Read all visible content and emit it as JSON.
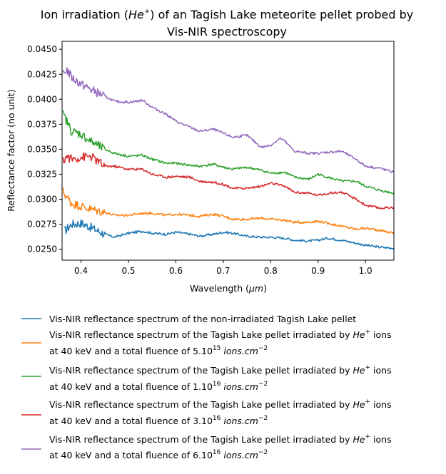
{
  "chart_data": {
    "type": "line",
    "title_line1_pre": "Ion irradiation (",
    "title_line1_ion": "He",
    "title_line1_ion_sup": "+",
    "title_line1_post": ") of an Tagish Lake meteorite pellet probed by",
    "title_line2": "Vis-NIR spectroscopy",
    "xlabel_pre": "Wavelength (",
    "xlabel_unit": "μm",
    "xlabel_post": ")",
    "ylabel": "Reflectance factor (no unit)",
    "xlim": [
      0.36,
      1.06
    ],
    "ylim": [
      0.0239,
      0.0458
    ],
    "xticks": [
      "0.4",
      "0.5",
      "0.6",
      "0.7",
      "0.8",
      "0.9",
      "1.0"
    ],
    "xtick_values": [
      0.4,
      0.5,
      0.6,
      0.7,
      0.8,
      0.9,
      1.0
    ],
    "yticks": [
      "0.0250",
      "0.0275",
      "0.0300",
      "0.0325",
      "0.0350",
      "0.0375",
      "0.0400",
      "0.0425",
      "0.0450"
    ],
    "ytick_values": [
      0.025,
      0.0275,
      0.03,
      0.0325,
      0.035,
      0.0375,
      0.04,
      0.0425,
      0.045
    ],
    "grid": false,
    "legend_position": "below plot",
    "series": [
      {
        "color": "#1f77b4",
        "legend": {
          "line1": "Vis-NIR reflectance spectrum of the non-irradiated Tagish Lake pellet",
          "line2": ""
        },
        "x": [
          0.365,
          0.38,
          0.4,
          0.42,
          0.45,
          0.47,
          0.5,
          0.53,
          0.55,
          0.58,
          0.6,
          0.63,
          0.65,
          0.68,
          0.7,
          0.72,
          0.75,
          0.78,
          0.8,
          0.83,
          0.85,
          0.88,
          0.9,
          0.92,
          0.95,
          0.98,
          1.0,
          1.03,
          1.06
        ],
        "y": [
          0.0268,
          0.0275,
          0.0276,
          0.0272,
          0.0265,
          0.0262,
          0.0266,
          0.0268,
          0.0266,
          0.0265,
          0.0267,
          0.0265,
          0.0263,
          0.0265,
          0.0267,
          0.0266,
          0.0263,
          0.0262,
          0.0262,
          0.0261,
          0.0259,
          0.0258,
          0.0259,
          0.0261,
          0.0259,
          0.0256,
          0.0254,
          0.0252,
          0.0251
        ]
      },
      {
        "color": "#ff7f0e",
        "legend": {
          "line1_pre": "Vis-NIR reflectance spectrum of the Tagish Lake pellet irradiated by ",
          "line1_ion": "He",
          "line1_ion_sup": "+",
          "line1_post": " ions",
          "line2_pre": "at 40 keV and a total fluence of 5.10",
          "line2_exp": "15",
          "line2_unit": "ions.cm",
          "line2_unit_exp": "−2"
        },
        "x": [
          0.362,
          0.37,
          0.38,
          0.4,
          0.42,
          0.45,
          0.47,
          0.5,
          0.53,
          0.55,
          0.58,
          0.6,
          0.63,
          0.65,
          0.68,
          0.7,
          0.72,
          0.75,
          0.78,
          0.8,
          0.83,
          0.85,
          0.88,
          0.9,
          0.92,
          0.95,
          0.98,
          1.0,
          1.03,
          1.06
        ],
        "y": [
          0.0308,
          0.0302,
          0.0296,
          0.0293,
          0.029,
          0.0287,
          0.0284,
          0.0284,
          0.0286,
          0.0286,
          0.0284,
          0.0285,
          0.0284,
          0.0283,
          0.0285,
          0.0283,
          0.028,
          0.028,
          0.0281,
          0.028,
          0.0279,
          0.0277,
          0.0277,
          0.0278,
          0.0276,
          0.0273,
          0.027,
          0.0271,
          0.0269,
          0.0266
        ]
      },
      {
        "color": "#2ca02c",
        "legend": {
          "line1_pre": "Vis-NIR reflectance spectrum of the Tagish Lake pellet irradiated by ",
          "line1_ion": "He",
          "line1_ion_sup": "+",
          "line1_post": " ions",
          "line2_pre": "at 40 keV and a total fluence of 1.10",
          "line2_exp": "16",
          "line2_unit": "ions.cm",
          "line2_unit_exp": "−2"
        },
        "x": [
          0.362,
          0.37,
          0.38,
          0.4,
          0.42,
          0.45,
          0.47,
          0.5,
          0.53,
          0.55,
          0.58,
          0.6,
          0.63,
          0.65,
          0.68,
          0.7,
          0.72,
          0.75,
          0.78,
          0.8,
          0.83,
          0.85,
          0.88,
          0.9,
          0.92,
          0.95,
          0.98,
          1.0,
          1.03,
          1.06
        ],
        "y": [
          0.0385,
          0.0378,
          0.0368,
          0.0365,
          0.0358,
          0.035,
          0.0346,
          0.0343,
          0.0344,
          0.034,
          0.0336,
          0.0336,
          0.0334,
          0.0333,
          0.0335,
          0.0332,
          0.033,
          0.0332,
          0.0329,
          0.0326,
          0.0327,
          0.0322,
          0.032,
          0.0325,
          0.0322,
          0.0318,
          0.0318,
          0.0313,
          0.0309,
          0.0306
        ]
      },
      {
        "color": "#d62728",
        "legend": {
          "line1_pre": "Vis-NIR reflectance spectrum of the Tagish Lake pellet irradiated by ",
          "line1_ion": "He",
          "line1_ion_sup": "+",
          "line1_post": " ions",
          "line2_pre": "at 40 keV and a total fluence of 3.10",
          "line2_exp": "16",
          "line2_unit": "ions.cm",
          "line2_unit_exp": "−2"
        },
        "x": [
          0.362,
          0.37,
          0.38,
          0.4,
          0.42,
          0.45,
          0.47,
          0.5,
          0.53,
          0.55,
          0.58,
          0.6,
          0.63,
          0.65,
          0.68,
          0.7,
          0.72,
          0.75,
          0.78,
          0.8,
          0.83,
          0.85,
          0.88,
          0.9,
          0.92,
          0.95,
          0.98,
          1.0,
          1.03,
          1.06
        ],
        "y": [
          0.0338,
          0.0343,
          0.034,
          0.0342,
          0.0343,
          0.0333,
          0.0333,
          0.033,
          0.033,
          0.0325,
          0.0322,
          0.0323,
          0.0322,
          0.0318,
          0.0317,
          0.0315,
          0.0311,
          0.0311,
          0.0313,
          0.0316,
          0.0313,
          0.0307,
          0.0306,
          0.0304,
          0.0306,
          0.0307,
          0.03,
          0.0294,
          0.0291,
          0.0292
        ]
      },
      {
        "color": "#9467bd",
        "legend": {
          "line1_pre": "Vis-NIR reflectance spectrum of the Tagish Lake pellet irradiated by ",
          "line1_ion": "He",
          "line1_ion_sup": "+",
          "line1_post": " ions",
          "line2_pre": "at 40 keV and a total fluence of 6.10",
          "line2_exp": "16",
          "line2_unit": "ions.cm",
          "line2_unit_exp": "−2"
        },
        "x": [
          0.362,
          0.37,
          0.38,
          0.4,
          0.42,
          0.45,
          0.47,
          0.5,
          0.53,
          0.55,
          0.58,
          0.6,
          0.63,
          0.65,
          0.68,
          0.7,
          0.72,
          0.75,
          0.78,
          0.8,
          0.82,
          0.83,
          0.85,
          0.88,
          0.9,
          0.92,
          0.95,
          0.98,
          1.0,
          1.03,
          1.06
        ],
        "y": [
          0.0425,
          0.043,
          0.0422,
          0.0415,
          0.041,
          0.0403,
          0.0398,
          0.0397,
          0.0399,
          0.0392,
          0.0385,
          0.0378,
          0.0372,
          0.0368,
          0.037,
          0.0366,
          0.0362,
          0.0364,
          0.0352,
          0.0354,
          0.0361,
          0.0358,
          0.0348,
          0.0346,
          0.0346,
          0.0347,
          0.0348,
          0.034,
          0.0333,
          0.0331,
          0.0327
        ]
      }
    ]
  }
}
